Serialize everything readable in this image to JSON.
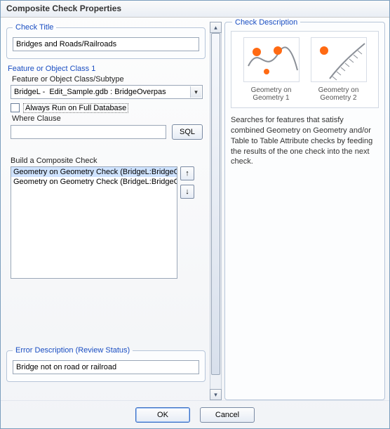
{
  "dialog": {
    "title": "Composite Check Properties"
  },
  "check_title": {
    "legend": "Check Title",
    "value": "Bridges and Roads/Railroads"
  },
  "feature_class": {
    "legend": "Feature or Object Class 1",
    "subtype_label": "Feature or Object Class/Subtype",
    "selected": "BridgeL -  Edit_Sample.gdb : BridgeOverpas",
    "always_full_label": "Always Run on Full Database",
    "always_full_checked": false,
    "where_label": "Where Clause",
    "where_value": "",
    "sql_btn": "SQL"
  },
  "composite": {
    "label": "Build a Composite Check",
    "items": [
      {
        "text": "Geometry on Geometry Check (BridgeL:BridgeOver",
        "selected": true
      },
      {
        "text": "Geometry on Geometry Check (BridgeL:BridgeOver",
        "selected": false
      }
    ],
    "up_icon": "↑",
    "down_icon": "↓"
  },
  "error_desc": {
    "legend": "Error Description (Review Status)",
    "value": "Bridge not on road or railroad"
  },
  "description_panel": {
    "legend": "Check Description",
    "thumb1_caption": "Geometry on Geometry 1",
    "thumb2_caption": "Geometry on Geometry 2",
    "text": "Searches for features that satisfy combined Geometry on Geometry and/or Table to Table Attribute checks by feeding the results of the one check into the next check."
  },
  "scrollbar": {
    "thumb_top_pct": 0,
    "thumb_height_pct": 96
  },
  "footer": {
    "ok": "OK",
    "cancel": "Cancel"
  },
  "colors": {
    "accent": "#1a4ec2",
    "orange": "#ff6a13",
    "gray_line": "#8a8f97"
  }
}
